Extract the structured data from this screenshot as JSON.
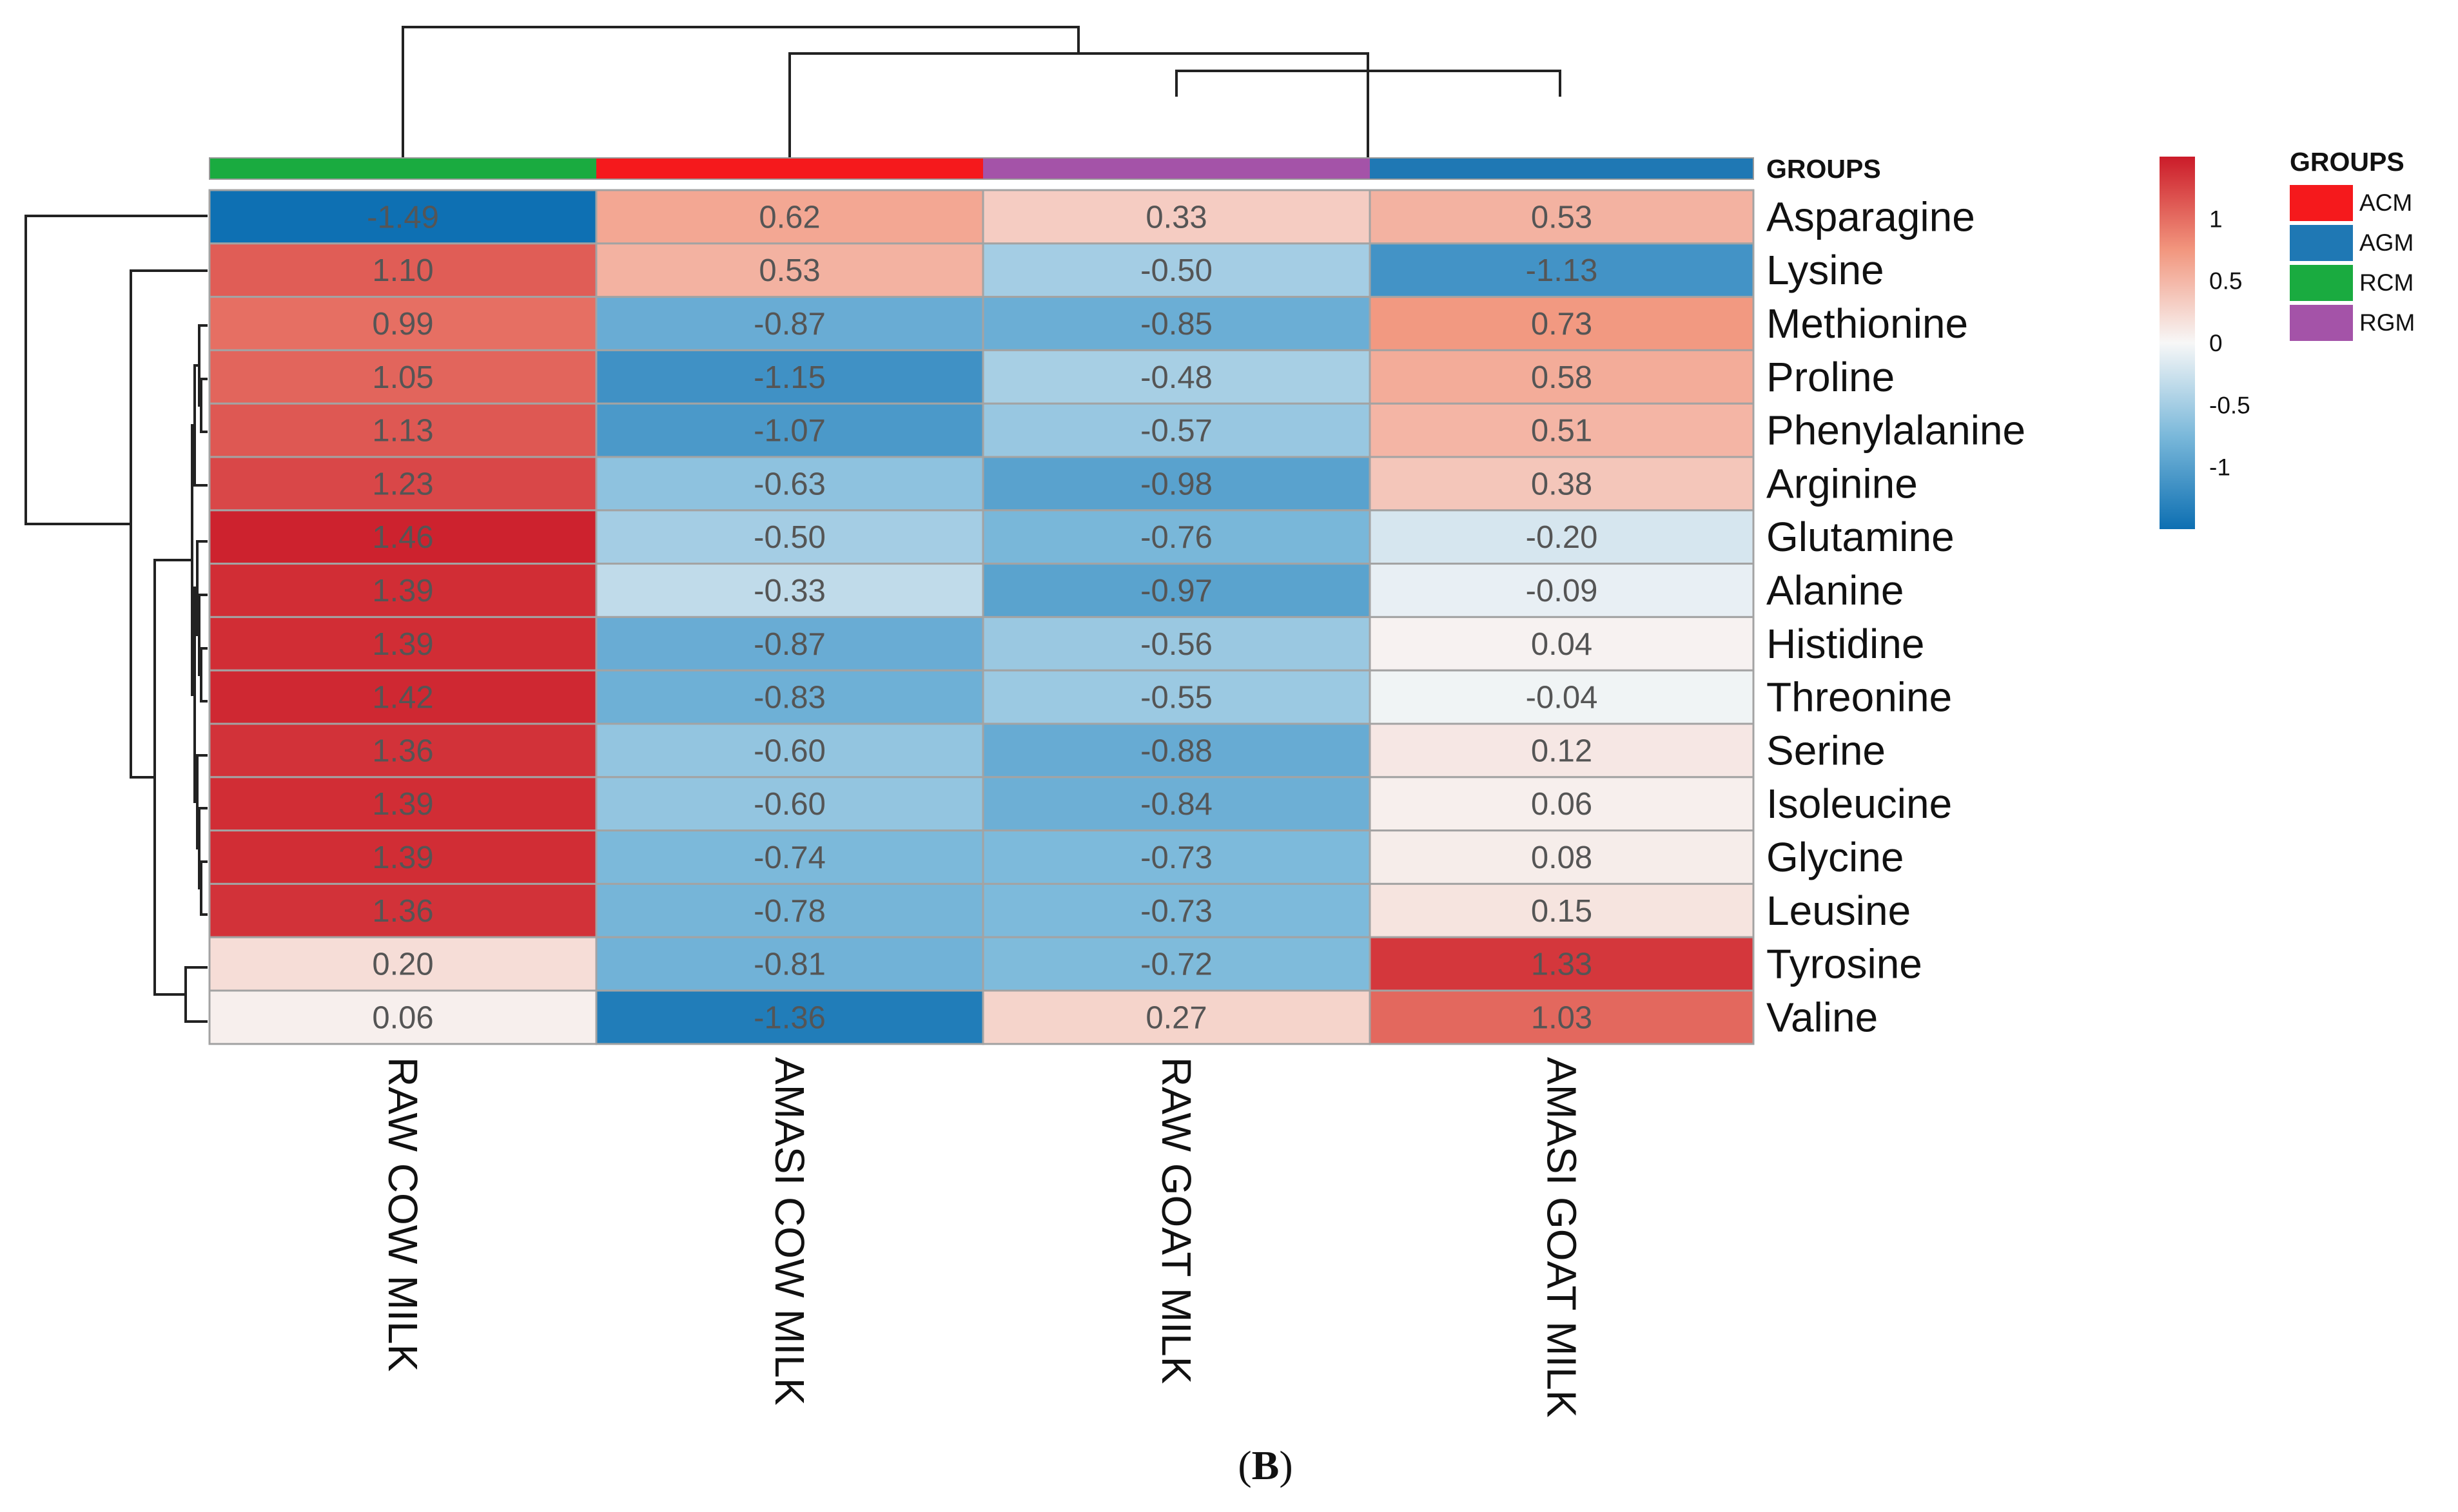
{
  "chart_data": {
    "type": "heatmap",
    "title": "",
    "columns": [
      "RAW COW MILK",
      "AMASI COW MILK",
      "RAW GOAT MILK",
      "AMASI GOAT MILK"
    ],
    "column_groups": [
      "RCM",
      "ACM",
      "RGM",
      "AGM"
    ],
    "rows": [
      "Asparagine",
      "Lysine",
      "Methionine",
      "Proline",
      "Phenylalanine",
      "Arginine",
      "Glutamine",
      "Alanine",
      "Histidine",
      "Threonine",
      "Serine",
      "Isoleucine",
      " Glycine",
      "Leusine",
      "Tyrosine",
      "Valine"
    ],
    "values": [
      [
        -1.49,
        0.62,
        0.33,
        0.53
      ],
      [
        1.1,
        0.53,
        -0.5,
        -1.13
      ],
      [
        0.99,
        -0.87,
        -0.85,
        0.73
      ],
      [
        1.05,
        -1.15,
        -0.48,
        0.58
      ],
      [
        1.13,
        -1.07,
        -0.57,
        0.51
      ],
      [
        1.23,
        -0.63,
        -0.98,
        0.38
      ],
      [
        1.46,
        -0.5,
        -0.76,
        -0.2
      ],
      [
        1.39,
        -0.33,
        -0.97,
        -0.09
      ],
      [
        1.39,
        -0.87,
        -0.56,
        0.04
      ],
      [
        1.42,
        -0.83,
        -0.55,
        -0.04
      ],
      [
        1.36,
        -0.6,
        -0.88,
        0.12
      ],
      [
        1.39,
        -0.6,
        -0.84,
        0.06
      ],
      [
        1.39,
        -0.74,
        -0.73,
        0.08
      ],
      [
        1.36,
        -0.78,
        -0.73,
        0.15
      ],
      [
        0.2,
        -0.81,
        -0.72,
        1.33
      ],
      [
        0.06,
        -1.36,
        0.27,
        1.03
      ]
    ],
    "color_scale": {
      "min": -1.5,
      "max": 1.5,
      "low_color": "#0d6fb2",
      "mid_color": "#f7f7f7",
      "high_color": "#cb1b29",
      "ticks": [
        1,
        0.5,
        0,
        -0.5,
        -1
      ],
      "tick_labels": [
        "1",
        "0.5",
        "0",
        "-0.5",
        "-1"
      ]
    },
    "group_bar_label": "GROUPS",
    "legend": {
      "title": "GROUPS",
      "entries": [
        {
          "label": "ACM",
          "color": "#f5191c"
        },
        {
          "label": "AGM",
          "color": "#1f78b4"
        },
        {
          "label": "RCM",
          "color": "#1aab40"
        },
        {
          "label": "RGM",
          "color": "#a453a8"
        }
      ]
    },
    "caption": {
      "open": "(",
      "letter": "B",
      "close": ")"
    }
  }
}
